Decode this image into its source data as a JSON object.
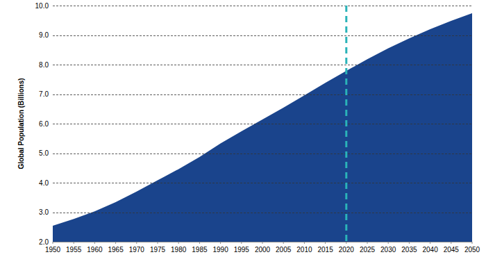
{
  "chart_data": {
    "type": "area",
    "y_label": "Global Population (Billions)",
    "x": [
      1950,
      1955,
      1960,
      1965,
      1970,
      1975,
      1980,
      1985,
      1990,
      1995,
      2000,
      2005,
      2010,
      2015,
      2020,
      2025,
      2030,
      2035,
      2040,
      2045,
      2050
    ],
    "values": [
      2.54,
      2.77,
      3.03,
      3.34,
      3.7,
      4.08,
      4.46,
      4.87,
      5.33,
      5.74,
      6.14,
      6.54,
      6.96,
      7.38,
      7.79,
      8.18,
      8.55,
      8.89,
      9.2,
      9.48,
      9.74
    ],
    "color": "#1a448c",
    "xlim": [
      1950,
      2050
    ],
    "xticks": [
      1950,
      1955,
      1960,
      1965,
      1970,
      1975,
      1980,
      1985,
      1990,
      1995,
      2000,
      2005,
      2010,
      2015,
      2020,
      2025,
      2030,
      2035,
      2040,
      2045,
      2050
    ],
    "ylim": [
      2,
      10
    ],
    "yticks": [
      {
        "value": 2,
        "label": "2.0"
      },
      {
        "value": 3,
        "label": "3.0"
      },
      {
        "value": 4,
        "label": "4.0"
      },
      {
        "value": 5,
        "label": "5.0"
      },
      {
        "value": 6,
        "label": "6.0"
      },
      {
        "value": 7,
        "label": "7.0"
      },
      {
        "value": 8,
        "label": "8.0"
      },
      {
        "value": 9,
        "label": "9.0"
      },
      {
        "value": 10,
        "label": "10.0"
      }
    ],
    "grid": true,
    "reference_lines": [
      {
        "x": 2020,
        "color": "#2ab3b8",
        "line_style": "dashed"
      }
    ]
  }
}
